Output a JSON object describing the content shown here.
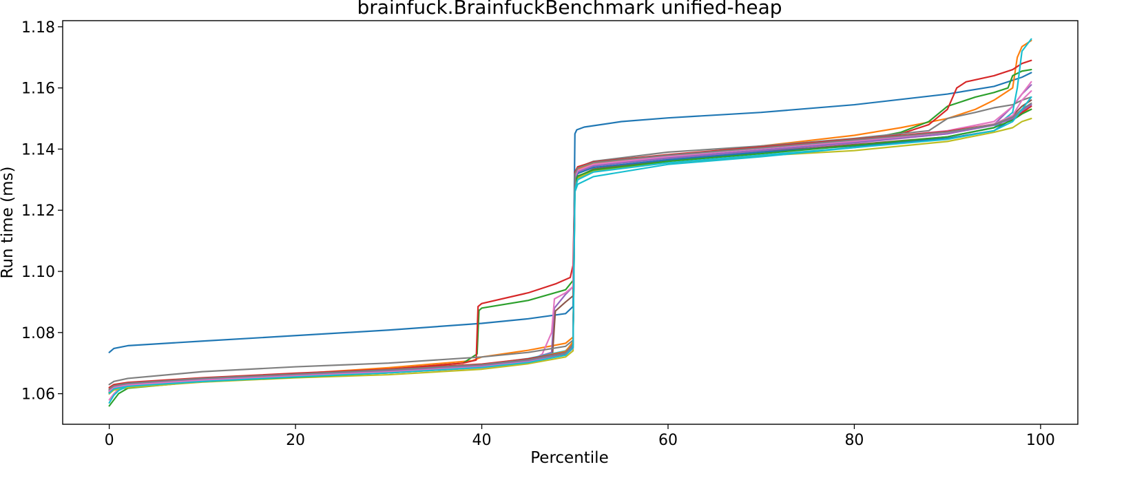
{
  "chart_data": {
    "type": "line",
    "title": "brainfuck.BrainfuckBenchmark unified-heap",
    "xlabel": "Percentile",
    "ylabel": "Run time (ms)",
    "xlim": [
      -5,
      104
    ],
    "ylim": [
      1.05,
      1.182
    ],
    "x_ticks": [
      0,
      20,
      40,
      60,
      80,
      100
    ],
    "y_ticks": [
      1.06,
      1.08,
      1.1,
      1.12,
      1.14,
      1.16,
      1.18
    ],
    "x_tick_labels": [
      "0",
      "20",
      "40",
      "60",
      "80",
      "100"
    ],
    "y_tick_labels": [
      "1.06",
      "1.08",
      "1.10",
      "1.12",
      "1.14",
      "1.16",
      "1.18"
    ],
    "grid": false,
    "legend": "none",
    "series": [
      {
        "color": "#1f77b4",
        "x": [
          0,
          0.5,
          2,
          10,
          20,
          30,
          40,
          45,
          49,
          49.8,
          50,
          50.2,
          51,
          55,
          60,
          70,
          80,
          90,
          95,
          98,
          99
        ],
        "y": [
          1.0735,
          1.0748,
          1.0757,
          1.0772,
          1.079,
          1.0808,
          1.083,
          1.0845,
          1.0862,
          1.0885,
          1.145,
          1.1463,
          1.1472,
          1.149,
          1.1502,
          1.152,
          1.1545,
          1.158,
          1.1605,
          1.1635,
          1.165
        ]
      },
      {
        "color": "#ff7f0e",
        "x": [
          0,
          0.5,
          2,
          10,
          20,
          30,
          39,
          40,
          45,
          49,
          49.8,
          50,
          50.3,
          52,
          60,
          70,
          80,
          85,
          90,
          93,
          95,
          97,
          97.5,
          98,
          99
        ],
        "y": [
          1.0605,
          1.0618,
          1.0625,
          1.0645,
          1.0665,
          1.0685,
          1.0708,
          1.072,
          1.0742,
          1.0765,
          1.0785,
          1.132,
          1.1338,
          1.1355,
          1.1378,
          1.141,
          1.1445,
          1.147,
          1.15,
          1.153,
          1.156,
          1.16,
          1.17,
          1.1735,
          1.1755
        ]
      },
      {
        "color": "#2ca02c",
        "x": [
          0,
          0.5,
          1,
          2,
          10,
          20,
          30,
          38,
          39.5,
          39.7,
          40,
          45,
          49,
          49.8,
          50,
          50.3,
          52,
          60,
          70,
          80,
          85,
          88,
          90,
          93,
          95,
          96.5,
          97,
          98,
          99
        ],
        "y": [
          1.056,
          1.058,
          1.06,
          1.0618,
          1.064,
          1.066,
          1.068,
          1.07,
          1.073,
          1.0872,
          1.088,
          1.0905,
          1.094,
          1.097,
          1.127,
          1.13,
          1.133,
          1.136,
          1.139,
          1.1425,
          1.1455,
          1.149,
          1.154,
          1.157,
          1.1585,
          1.16,
          1.164,
          1.1655,
          1.166
        ]
      },
      {
        "color": "#d62728",
        "x": [
          0,
          0.5,
          2,
          10,
          20,
          30,
          38,
          39.4,
          39.6,
          40,
          45,
          48,
          49.5,
          49.8,
          50,
          50.3,
          52,
          60,
          70,
          80,
          85,
          88,
          90,
          91,
          92,
          95,
          97,
          98,
          99
        ],
        "y": [
          1.06,
          1.0618,
          1.063,
          1.065,
          1.0665,
          1.068,
          1.07,
          1.071,
          1.0885,
          1.0895,
          1.093,
          1.096,
          1.098,
          1.102,
          1.131,
          1.133,
          1.135,
          1.138,
          1.1405,
          1.143,
          1.145,
          1.148,
          1.153,
          1.16,
          1.162,
          1.164,
          1.166,
          1.168,
          1.169
        ]
      },
      {
        "color": "#9467bd",
        "x": [
          0,
          0.5,
          2,
          10,
          20,
          30,
          40,
          45,
          47.5,
          47.8,
          49,
          49.8,
          50,
          50.3,
          52,
          60,
          70,
          80,
          90,
          95,
          97,
          98,
          99
        ],
        "y": [
          1.061,
          1.0622,
          1.063,
          1.0645,
          1.066,
          1.0675,
          1.0695,
          1.0712,
          1.0735,
          1.088,
          1.0925,
          1.095,
          1.13,
          1.132,
          1.1345,
          1.137,
          1.1395,
          1.142,
          1.145,
          1.148,
          1.154,
          1.158,
          1.161
        ]
      },
      {
        "color": "#8c564b",
        "x": [
          0,
          0.5,
          2,
          10,
          20,
          30,
          40,
          45,
          47.6,
          47.9,
          49,
          49.8,
          50,
          50.3,
          52,
          60,
          70,
          80,
          90,
          95,
          97,
          98,
          99
        ],
        "y": [
          1.06,
          1.0615,
          1.0625,
          1.064,
          1.0658,
          1.0672,
          1.069,
          1.071,
          1.073,
          1.087,
          1.09,
          1.092,
          1.129,
          1.131,
          1.1335,
          1.1365,
          1.139,
          1.1415,
          1.144,
          1.147,
          1.151,
          1.154,
          1.156
        ]
      },
      {
        "color": "#e377c2",
        "x": [
          0,
          0.5,
          1,
          2,
          10,
          20,
          30,
          40,
          45,
          46.5,
          47.5,
          47.8,
          49,
          49.8,
          50,
          50.3,
          52,
          60,
          70,
          80,
          90,
          95,
          97,
          98,
          99
        ],
        "y": [
          1.058,
          1.06,
          1.0615,
          1.0625,
          1.064,
          1.0655,
          1.0668,
          1.0685,
          1.07,
          1.073,
          1.08,
          1.091,
          1.093,
          1.095,
          1.131,
          1.133,
          1.135,
          1.1375,
          1.1405,
          1.143,
          1.146,
          1.149,
          1.154,
          1.158,
          1.162
        ]
      },
      {
        "color": "#7f7f7f",
        "x": [
          0,
          0.5,
          2,
          10,
          20,
          30,
          40,
          45,
          49,
          49.8,
          50,
          50.3,
          52,
          60,
          70,
          80,
          88,
          90,
          93,
          95,
          97,
          98,
          99
        ],
        "y": [
          1.063,
          1.064,
          1.065,
          1.0672,
          1.0688,
          1.07,
          1.072,
          1.0735,
          1.0755,
          1.0775,
          1.132,
          1.134,
          1.136,
          1.139,
          1.141,
          1.1435,
          1.146,
          1.15,
          1.152,
          1.1535,
          1.1545,
          1.156,
          1.157
        ]
      },
      {
        "color": "#bcbd22",
        "x": [
          0,
          0.5,
          2,
          10,
          20,
          30,
          40,
          45,
          49,
          49.8,
          50,
          50.3,
          52,
          60,
          70,
          80,
          90,
          95,
          97,
          98,
          99
        ],
        "y": [
          1.06,
          1.0612,
          1.062,
          1.0638,
          1.0652,
          1.0662,
          1.068,
          1.0698,
          1.072,
          1.074,
          1.128,
          1.1305,
          1.133,
          1.1355,
          1.1378,
          1.1395,
          1.1425,
          1.1455,
          1.147,
          1.149,
          1.15
        ]
      },
      {
        "color": "#17becf",
        "x": [
          0,
          0.5,
          1,
          2,
          10,
          20,
          30,
          40,
          45,
          49,
          49.8,
          50,
          50.3,
          52,
          60,
          70,
          80,
          90,
          95,
          97,
          97.5,
          98,
          99
        ],
        "y": [
          1.057,
          1.0595,
          1.061,
          1.0625,
          1.0645,
          1.066,
          1.0675,
          1.0695,
          1.0715,
          1.074,
          1.0765,
          1.126,
          1.1285,
          1.131,
          1.135,
          1.1375,
          1.1405,
          1.144,
          1.147,
          1.152,
          1.16,
          1.172,
          1.176
        ]
      },
      {
        "color": "#1f77b4",
        "x": [
          0,
          0.5,
          2,
          10,
          20,
          30,
          40,
          45,
          49,
          49.8,
          50,
          50.3,
          52,
          60,
          70,
          80,
          90,
          95,
          97,
          98,
          99
        ],
        "y": [
          1.061,
          1.062,
          1.0628,
          1.0642,
          1.0656,
          1.067,
          1.0688,
          1.0705,
          1.073,
          1.076,
          1.13,
          1.132,
          1.134,
          1.1365,
          1.139,
          1.141,
          1.1435,
          1.146,
          1.15,
          1.153,
          1.1545
        ]
      },
      {
        "color": "#ff7f0e",
        "x": [
          0,
          0.5,
          2,
          10,
          20,
          30,
          40,
          45,
          49,
          49.8,
          50,
          50.3,
          52,
          60,
          70,
          80,
          90,
          95,
          97,
          98,
          99
        ],
        "y": [
          1.0615,
          1.0625,
          1.0632,
          1.0648,
          1.0662,
          1.0676,
          1.0694,
          1.0712,
          1.0738,
          1.077,
          1.1315,
          1.1335,
          1.1352,
          1.1378,
          1.1402,
          1.1428,
          1.1455,
          1.148,
          1.1505,
          1.152,
          1.153
        ]
      },
      {
        "color": "#2ca02c",
        "x": [
          0,
          0.5,
          2,
          10,
          20,
          30,
          40,
          45,
          49,
          49.8,
          50,
          50.3,
          52,
          60,
          70,
          80,
          90,
          95,
          97,
          98,
          99
        ],
        "y": [
          1.0605,
          1.0618,
          1.0626,
          1.064,
          1.0654,
          1.0668,
          1.0686,
          1.0704,
          1.0728,
          1.0752,
          1.129,
          1.1312,
          1.1332,
          1.136,
          1.1385,
          1.1412,
          1.144,
          1.147,
          1.1495,
          1.1515,
          1.153
        ]
      },
      {
        "color": "#d62728",
        "x": [
          0,
          0.5,
          2,
          10,
          20,
          30,
          40,
          45,
          49,
          49.8,
          50,
          50.3,
          52,
          60,
          70,
          80,
          90,
          95,
          97,
          98,
          99
        ],
        "y": [
          1.062,
          1.063,
          1.0637,
          1.0652,
          1.0667,
          1.068,
          1.0697,
          1.0714,
          1.0735,
          1.076,
          1.1325,
          1.1342,
          1.1358,
          1.1382,
          1.1407,
          1.1432,
          1.1458,
          1.1482,
          1.15,
          1.152,
          1.154
        ]
      },
      {
        "color": "#9467bd",
        "x": [
          0,
          0.5,
          2,
          10,
          20,
          30,
          40,
          45,
          49,
          49.8,
          50,
          50.3,
          52,
          60,
          70,
          80,
          90,
          95,
          97,
          98,
          99
        ],
        "y": [
          1.0612,
          1.0622,
          1.063,
          1.0646,
          1.066,
          1.0674,
          1.0691,
          1.0708,
          1.0732,
          1.0758,
          1.1305,
          1.1325,
          1.1345,
          1.1372,
          1.1397,
          1.1422,
          1.145,
          1.1478,
          1.15,
          1.1525,
          1.1545
        ]
      },
      {
        "color": "#e377c2",
        "x": [
          0,
          0.5,
          2,
          10,
          20,
          30,
          40,
          45,
          49,
          49.8,
          50,
          50.3,
          52,
          60,
          70,
          80,
          90,
          95,
          97,
          98,
          99
        ],
        "y": [
          1.0608,
          1.062,
          1.0628,
          1.0644,
          1.0658,
          1.0671,
          1.0688,
          1.0704,
          1.0726,
          1.0748,
          1.131,
          1.133,
          1.135,
          1.1376,
          1.1402,
          1.1426,
          1.1455,
          1.1482,
          1.151,
          1.156,
          1.159
        ]
      },
      {
        "color": "#7f7f7f",
        "x": [
          0,
          0.5,
          2,
          10,
          20,
          30,
          40,
          45,
          49,
          49.8,
          50,
          50.3,
          52,
          60,
          70,
          80,
          90,
          95,
          97,
          98,
          99
        ],
        "y": [
          1.0615,
          1.0626,
          1.0634,
          1.065,
          1.0664,
          1.0678,
          1.0695,
          1.0711,
          1.0734,
          1.0762,
          1.1318,
          1.1338,
          1.1356,
          1.138,
          1.1404,
          1.143,
          1.1456,
          1.148,
          1.1505,
          1.153,
          1.155
        ]
      },
      {
        "color": "#17becf",
        "x": [
          0,
          0.5,
          2,
          10,
          20,
          30,
          40,
          45,
          49,
          49.8,
          50,
          50.3,
          52,
          60,
          70,
          80,
          90,
          95,
          97,
          98,
          99
        ],
        "y": [
          1.0602,
          1.0616,
          1.0624,
          1.064,
          1.0655,
          1.0668,
          1.0686,
          1.0702,
          1.0726,
          1.075,
          1.127,
          1.13,
          1.1325,
          1.1355,
          1.138,
          1.1405,
          1.1432,
          1.146,
          1.149,
          1.153,
          1.157
        ]
      }
    ]
  }
}
